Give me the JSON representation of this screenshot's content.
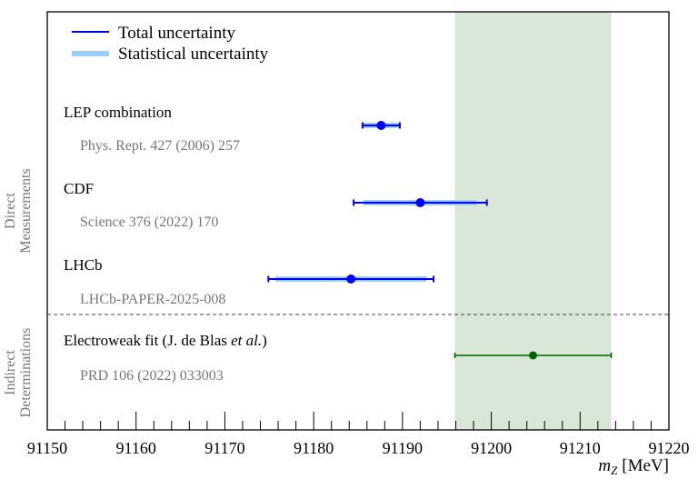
{
  "chart_data": {
    "type": "forest",
    "xlabel_main": "m",
    "xlabel_sub": "Z",
    "xlabel_unit": "[MeV]",
    "xlim": [
      91150,
      91220
    ],
    "xticks": [
      "91150",
      "91160",
      "91170",
      "91180",
      "91190",
      "91200",
      "91210",
      "91220"
    ],
    "grid": false,
    "legend": {
      "placement": "top-left",
      "total": "Total uncertainty",
      "stat": "Statistical uncertainty"
    },
    "groups": {
      "direct_l1": "Direct",
      "direct_l2": "Measurements",
      "indirect_l1": "Indirect",
      "indirect_l2": "Determinations"
    },
    "measurements": [
      {
        "name": "LEP combination",
        "ref": "Phys. Rept. 427 (2006) 257",
        "value": 91187.6,
        "total_err": 2.1,
        "stat_err": 2.0,
        "group": "direct"
      },
      {
        "name": "CDF",
        "ref": "Science 376 (2022) 170",
        "value": 91192.0,
        "total_err": 7.5,
        "stat_err": 6.4,
        "group": "direct"
      },
      {
        "name": "LHCb",
        "ref": "LHCb-PAPER-2025-008",
        "value": 91184.2,
        "total_err": 9.3,
        "stat_err": 8.5,
        "group": "direct"
      },
      {
        "name": "Electroweak fit (J. de Blas ",
        "name_italic": "et al.",
        "name_end": ")",
        "ref": "PRD 106 (2022) 033003",
        "value": 91204.7,
        "total_err": 8.8,
        "group": "indirect",
        "band": true
      }
    ],
    "colors": {
      "total": "#0000ff",
      "stat": "#99ccff",
      "fit": "#006400",
      "band": "#d9e7d9",
      "ref_text": "#777777"
    }
  }
}
